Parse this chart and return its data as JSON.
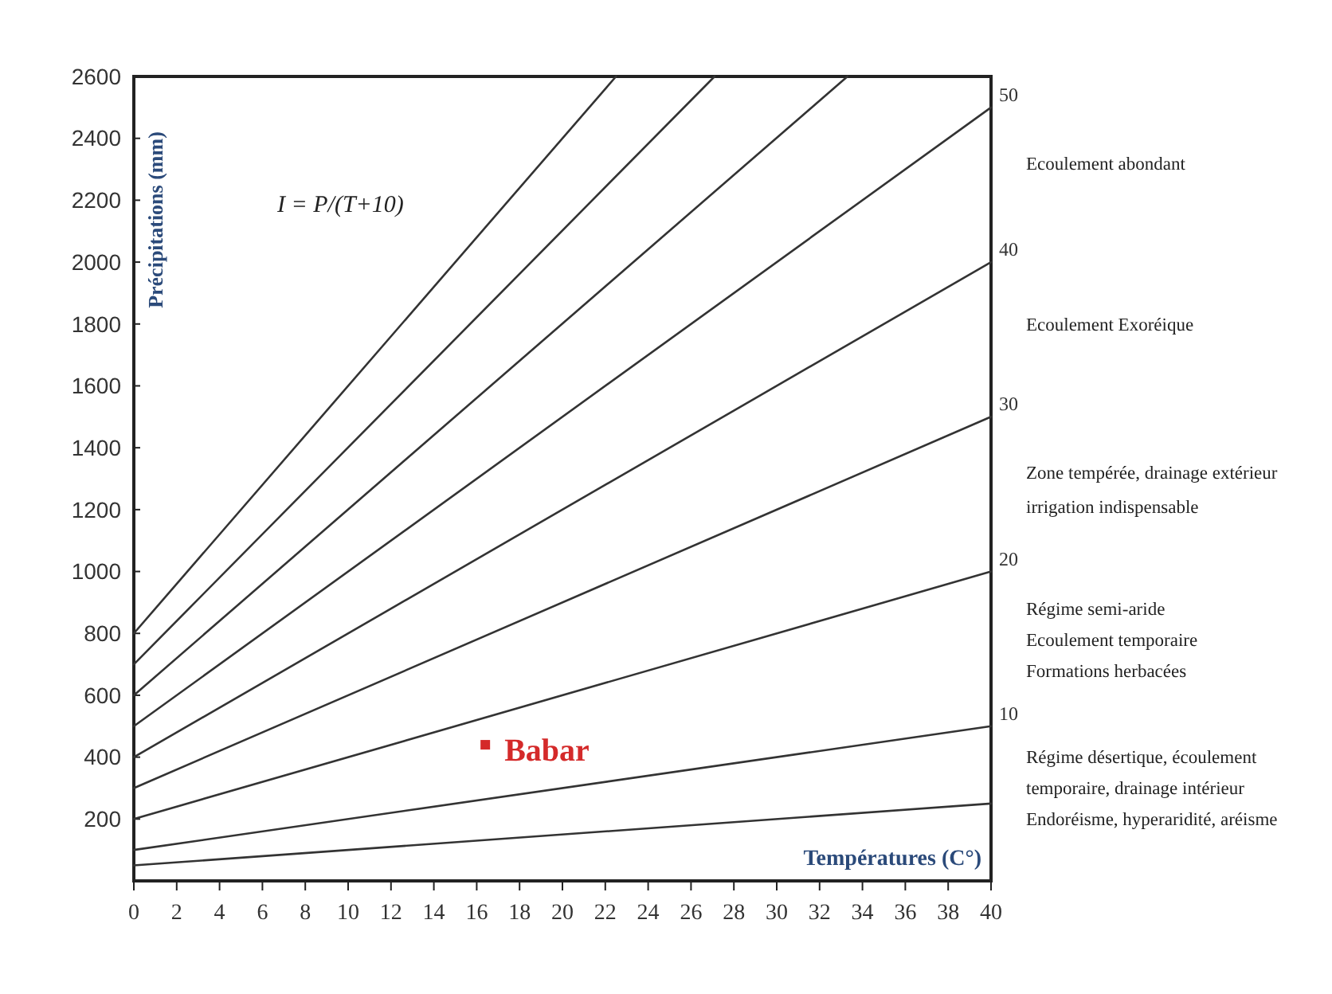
{
  "chart_data": {
    "type": "line",
    "xlabel": "Températures (C°)",
    "ylabel": "Précipitations (mm)",
    "xlim": [
      0,
      40
    ],
    "ylim": [
      0,
      2600
    ],
    "xticks": [
      0,
      2,
      4,
      6,
      8,
      10,
      12,
      14,
      16,
      18,
      20,
      22,
      24,
      26,
      28,
      30,
      32,
      34,
      36,
      38,
      40
    ],
    "yticks": [
      200,
      400,
      600,
      800,
      1000,
      1200,
      1400,
      1600,
      1800,
      2000,
      2200,
      2400,
      2600
    ],
    "grid": false,
    "line_style": "solid",
    "series": [
      {
        "color": "#333333",
        "x": [
          0,
          40
        ],
        "values": [
          50,
          250
        ]
      },
      {
        "name": "10",
        "color": "#333333",
        "x": [
          0,
          40
        ],
        "values": [
          100,
          500
        ]
      },
      {
        "name": "20",
        "color": "#333333",
        "x": [
          0,
          40
        ],
        "values": [
          200,
          1000
        ]
      },
      {
        "name": "30",
        "color": "#333333",
        "x": [
          0,
          40
        ],
        "values": [
          300,
          1500
        ]
      },
      {
        "name": "40",
        "color": "#333333",
        "x": [
          0,
          40
        ],
        "values": [
          400,
          2000
        ]
      },
      {
        "name": "50",
        "color": "#333333",
        "x": [
          0,
          40
        ],
        "values": [
          500,
          2500
        ]
      },
      {
        "color": "#333333",
        "x": [
          0,
          33.3
        ],
        "values": [
          600,
          2600
        ]
      },
      {
        "color": "#333333",
        "x": [
          0,
          27.1
        ],
        "values": [
          700,
          2600
        ]
      },
      {
        "color": "#333333",
        "x": [
          0,
          22.5
        ],
        "values": [
          800,
          2600
        ]
      },
      {
        "name": "Babar",
        "type": "scatter",
        "marker": "square",
        "color": "#d42a2a",
        "x": [
          16.4
        ],
        "values": [
          440
        ]
      }
    ],
    "annotations": [
      "I = P/(T+10)",
      "Ecoulement abondant",
      "Ecoulement Exoréique",
      "Zone tempérée, drainage extérieur\nirrigation indispensable",
      "Régime semi-aride\nEcoulement temporaire\nFormations herbacées",
      "Régime désertique, écoulement\ntemporaire, drainage intérieur\nEndoréisme, hyperaridité, aréisme"
    ]
  }
}
